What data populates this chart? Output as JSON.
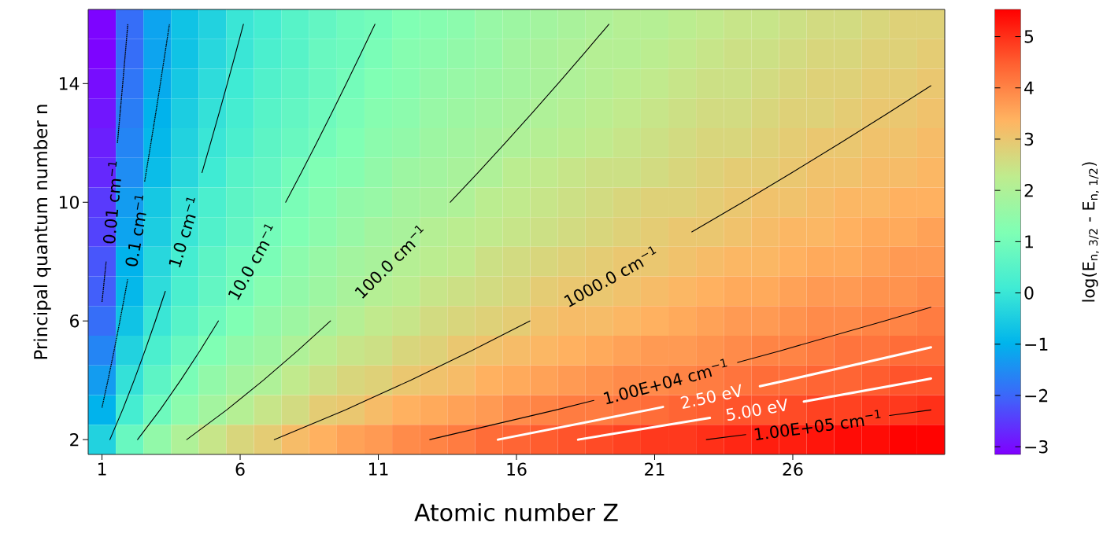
{
  "chart_data": {
    "type": "heatmap",
    "xlabel": "Atomic number Z",
    "ylabel": "Principal quantum number n",
    "clabel": "log(E$_{n, 3/2}$ - E$_{n, 1/2}$)",
    "xlim": [
      0.5,
      31.5
    ],
    "xticks": [
      1,
      6,
      11,
      16,
      21,
      26
    ],
    "ylim": [
      1.5,
      16.5
    ],
    "yticks": [
      2,
      6,
      10,
      14
    ],
    "clim": [
      -3.15,
      5.53
    ],
    "cticks": [
      {
        "value": -3,
        "label": "−3"
      },
      {
        "value": -2,
        "label": "−2"
      },
      {
        "value": -1,
        "label": "−1"
      },
      0,
      1,
      2,
      3,
      4,
      5
    ],
    "x": [
      1,
      2,
      3,
      4,
      5,
      6,
      7,
      8,
      9,
      10,
      11,
      12,
      13,
      14,
      15,
      16,
      17,
      18,
      19,
      20,
      21,
      22,
      23,
      24,
      25,
      26,
      27,
      28,
      29,
      30,
      31
    ],
    "y": [
      16,
      15,
      14,
      13,
      12,
      11,
      10,
      9,
      8,
      7,
      6,
      5,
      4,
      3,
      2
    ],
    "cells": [
      [
        -3.1,
        -1.9,
        -1.2,
        -0.7,
        -0.4,
        0.0,
        0.2,
        0.5,
        0.7,
        0.9,
        1.0,
        1.2,
        1.3,
        1.4,
        1.6,
        1.7,
        1.8,
        1.9,
        2.0,
        2.1,
        2.1,
        2.2,
        2.3,
        2.4,
        2.4,
        2.5,
        2.6,
        2.6,
        2.7,
        2.8,
        2.8
      ],
      [
        -3.1,
        -1.9,
        -1.2,
        -0.7,
        -0.3,
        0.0,
        0.3,
        0.5,
        0.8,
        0.9,
        1.1,
        1.3,
        1.4,
        1.5,
        1.6,
        1.8,
        1.9,
        2.0,
        2.1,
        2.1,
        2.2,
        2.3,
        2.4,
        2.5,
        2.5,
        2.6,
        2.7,
        2.7,
        2.8,
        2.8,
        2.9
      ],
      [
        -3.0,
        -1.8,
        -1.1,
        -0.6,
        -0.2,
        0.1,
        0.4,
        0.6,
        0.8,
        1.0,
        1.2,
        1.3,
        1.5,
        1.6,
        1.7,
        1.8,
        1.9,
        2.0,
        2.1,
        2.2,
        2.3,
        2.4,
        2.5,
        2.5,
        2.6,
        2.7,
        2.8,
        2.8,
        2.9,
        2.9,
        3.0
      ],
      [
        -2.9,
        -1.7,
        -1.0,
        -0.5,
        -0.1,
        0.2,
        0.5,
        0.7,
        0.9,
        1.1,
        1.3,
        1.4,
        1.6,
        1.7,
        1.8,
        1.9,
        2.0,
        2.1,
        2.2,
        2.3,
        2.4,
        2.5,
        2.6,
        2.6,
        2.7,
        2.8,
        2.8,
        2.9,
        3.0,
        3.0,
        3.1
      ],
      [
        -2.8,
        -1.6,
        -0.9,
        -0.4,
        0.0,
        0.3,
        0.6,
        0.8,
        1.0,
        1.2,
        1.4,
        1.5,
        1.7,
        1.8,
        1.9,
        2.0,
        2.1,
        2.2,
        2.3,
        2.4,
        2.5,
        2.6,
        2.7,
        2.7,
        2.8,
        2.9,
        3.0,
        3.0,
        3.1,
        3.1,
        3.2
      ],
      [
        -2.7,
        -1.5,
        -0.8,
        -0.3,
        0.1,
        0.5,
        0.7,
        1.0,
        1.2,
        1.3,
        1.5,
        1.7,
        1.8,
        1.9,
        2.0,
        2.2,
        2.3,
        2.4,
        2.5,
        2.5,
        2.6,
        2.7,
        2.8,
        2.9,
        2.9,
        3.0,
        3.1,
        3.1,
        3.2,
        3.2,
        3.3
      ],
      [
        -2.5,
        -1.3,
        -0.6,
        -0.1,
        0.3,
        0.6,
        0.8,
        1.1,
        1.3,
        1.5,
        1.6,
        1.8,
        1.9,
        2.0,
        2.2,
        2.3,
        2.4,
        2.5,
        2.6,
        2.7,
        2.8,
        2.8,
        2.9,
        3.0,
        3.1,
        3.1,
        3.2,
        3.3,
        3.3,
        3.4,
        3.4
      ],
      [
        -2.4,
        -1.2,
        -0.5,
        0.0,
        0.4,
        0.7,
        1.0,
        1.2,
        1.4,
        1.6,
        1.8,
        1.9,
        2.1,
        2.2,
        2.3,
        2.4,
        2.5,
        2.6,
        2.7,
        2.8,
        2.9,
        3.0,
        3.0,
        3.1,
        3.2,
        3.3,
        3.3,
        3.4,
        3.5,
        3.5,
        3.6
      ],
      [
        -2.2,
        -1.0,
        -0.3,
        0.2,
        0.6,
        0.9,
        1.1,
        1.4,
        1.6,
        1.8,
        1.9,
        2.1,
        2.2,
        2.3,
        2.5,
        2.6,
        2.7,
        2.8,
        2.9,
        3.0,
        3.0,
        3.1,
        3.2,
        3.3,
        3.3,
        3.4,
        3.5,
        3.5,
        3.6,
        3.7,
        3.7
      ],
      [
        -2.1,
        -0.9,
        -0.2,
        0.3,
        0.7,
        1.0,
        1.3,
        1.5,
        1.7,
        1.9,
        2.1,
        2.2,
        2.4,
        2.5,
        2.6,
        2.7,
        2.9,
        3.0,
        3.0,
        3.1,
        3.2,
        3.3,
        3.4,
        3.5,
        3.5,
        3.6,
        3.7,
        3.7,
        3.8,
        3.8,
        3.9
      ],
      [
        -1.9,
        -0.7,
        0.0,
        0.5,
        0.9,
        1.2,
        1.5,
        1.7,
        1.9,
        2.1,
        2.3,
        2.4,
        2.6,
        2.7,
        2.8,
        2.9,
        3.1,
        3.2,
        3.2,
        3.3,
        3.4,
        3.5,
        3.6,
        3.7,
        3.7,
        3.8,
        3.9,
        3.9,
        4.0,
        4.0,
        4.1
      ],
      [
        -1.6,
        -0.4,
        0.3,
        0.8,
        1.2,
        1.5,
        1.7,
        2.0,
        2.2,
        2.4,
        2.5,
        2.7,
        2.8,
        3.0,
        3.1,
        3.2,
        3.3,
        3.4,
        3.5,
        3.6,
        3.7,
        3.7,
        3.8,
        3.9,
        4.0,
        4.0,
        4.1,
        4.2,
        4.2,
        4.3,
        4.3
      ],
      [
        -1.3,
        -0.1,
        0.6,
        1.1,
        1.5,
        1.8,
        2.0,
        2.3,
        2.5,
        2.7,
        2.8,
        3.0,
        3.1,
        3.2,
        3.4,
        3.5,
        3.6,
        3.7,
        3.8,
        3.9,
        3.9,
        4.0,
        4.1,
        4.2,
        4.3,
        4.3,
        4.4,
        4.4,
        4.5,
        4.6,
        4.6
      ],
      [
        -1.0,
        0.2,
        0.9,
        1.4,
        1.8,
        2.1,
        2.4,
        2.6,
        2.9,
        3.0,
        3.2,
        3.4,
        3.5,
        3.6,
        3.7,
        3.9,
        4.0,
        4.1,
        4.1,
        4.2,
        4.3,
        4.4,
        4.5,
        4.6,
        4.6,
        4.7,
        4.8,
        4.8,
        4.9,
        4.9,
        5.0
      ],
      [
        -0.4,
        0.8,
        1.5,
        2.0,
        2.4,
        2.7,
        2.9,
        3.2,
        3.4,
        3.6,
        3.7,
        3.9,
        4.0,
        4.1,
        4.3,
        4.4,
        4.5,
        4.6,
        4.7,
        4.8,
        4.9,
        4.9,
        5.0,
        5.1,
        5.2,
        5.2,
        5.3,
        5.4,
        5.4,
        5.5,
        5.5
      ]
    ],
    "series": [
      {
        "type": "line",
        "name": "0.01 cm$^{−1}$",
        "color": "#000000",
        "line_style": "dashed",
        "x": [
          1,
          1.041,
          1.15,
          1.256,
          1.36,
          1.46,
          1.559,
          1.655,
          1.75,
          1.843,
          1.934
        ],
        "values": [
          6.64,
          7,
          8,
          null,
          null,
          null,
          12,
          13,
          14,
          15,
          16
        ]
      },
      {
        "type": "line",
        "name": "0.1 cm$^{−1}$",
        "color": "#000000",
        "line_style": "dashed",
        "x": [
          1,
          1.216,
          1.438,
          1.648,
          1.851,
          1.929,
          2.234,
          2.544,
          2.597,
          2.772,
          2.944,
          3.112,
          3.277,
          3.44
        ],
        "values": [
          3.08,
          4,
          5,
          6,
          7,
          7.4,
          null,
          10.7,
          11,
          12,
          13,
          14,
          15,
          16
        ]
      },
      {
        "type": "line",
        "name": "1.0 cm$^{−1}$",
        "color": "#000000",
        "line_style": "solid",
        "x": [
          1.286,
          1.743,
          2.163,
          2.557,
          2.932,
          3.291,
          3.638,
          3.974,
          4.3,
          4.619,
          4.93,
          5.235,
          5.535,
          5.829,
          6.118
        ],
        "values": [
          2,
          3,
          4,
          5,
          6,
          7,
          null,
          null,
          null,
          11,
          12,
          13,
          14,
          15,
          16
        ]
      },
      {
        "type": "line",
        "name": "10.0 cm$^{−1}$",
        "color": "#000000",
        "line_style": "solid",
        "x": [
          2.287,
          3.1,
          3.846,
          4.547,
          5.213,
          5.852,
          6.469,
          7.066,
          7.647,
          8.214,
          8.768,
          9.31,
          9.842,
          10.365,
          10.879
        ],
        "values": [
          2,
          3,
          4,
          5,
          6,
          null,
          null,
          null,
          10,
          11,
          12,
          13,
          14,
          15,
          16
        ]
      },
      {
        "type": "line",
        "name": "100.0 cm$^{−1}$",
        "color": "#000000",
        "line_style": "solid",
        "x": [
          4.067,
          5.513,
          6.84,
          8.086,
          9.271,
          10.407,
          11.503,
          12.566,
          13.599,
          14.607,
          15.592,
          16.557,
          17.503,
          18.432,
          19.346
        ],
        "values": [
          2,
          3,
          4,
          5,
          6,
          null,
          null,
          null,
          10,
          11,
          12,
          13,
          14,
          15,
          16
        ]
      },
      {
        "type": "line",
        "name": "1000.0 cm$^{−1}$",
        "color": "#000000",
        "line_style": "solid",
        "x": [
          7.232,
          9.803,
          12.163,
          14.379,
          16.486,
          18.506,
          20.456,
          22.345,
          24.182,
          25.974,
          27.726,
          29.441,
          31
        ],
        "values": [
          2,
          3,
          4,
          5,
          6,
          null,
          null,
          9,
          10,
          11,
          12,
          13,
          13.93
        ]
      },
      {
        "type": "line",
        "name": "1.00E+04 cm$^{−1}$",
        "color": "#000000",
        "line_style": "solid",
        "x": [
          12.861,
          17.432,
          18.8,
          21.0,
          24.0,
          25.57,
          29.317,
          31
        ],
        "values": [
          2,
          3,
          3.32,
          null,
          4.6,
          5,
          6,
          6.46
        ]
      },
      {
        "type": "line",
        "name": "2.50 eV",
        "color": "#ffffff",
        "line_style": "solid",
        "x": [
          15.331,
          20.78,
          21.3,
          23.33,
          24.81,
          25.784,
          30.481,
          31
        ],
        "values": [
          2,
          3,
          3.1,
          null,
          3.8,
          4,
          5,
          5.11
        ]
      },
      {
        "type": "line",
        "name": "5.00 eV",
        "color": "#ffffff",
        "line_style": "solid",
        "x": [
          18.231,
          23.0,
          24.71,
          26.4,
          30.659,
          31
        ],
        "values": [
          2,
          2.73,
          null,
          3.28,
          4,
          4.06
        ]
      },
      {
        "type": "line",
        "name": "1.00E+05 cm$^{−1}$",
        "color": "#000000",
        "line_style": "solid",
        "x": [
          22.871,
          24.3,
          27,
          29.5,
          31
        ],
        "values": [
          2,
          2.17,
          null,
          2.81,
          3.0
        ]
      }
    ]
  }
}
